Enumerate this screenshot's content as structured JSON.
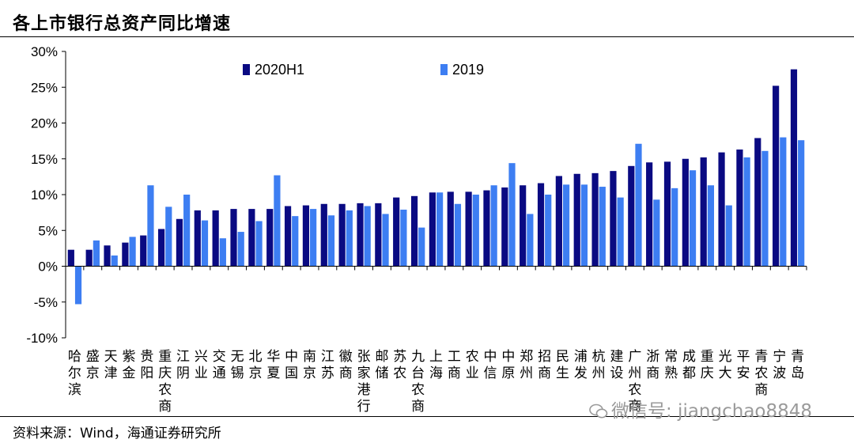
{
  "title": "各上市银行总资产同比增速",
  "source": "资料来源：Wind，海通证券研究所",
  "watermark": "微信号: jiangchao8848",
  "colors": {
    "series_2020H1": "#0a0a82",
    "series_2019": "#3d7ef2"
  },
  "chart_data": {
    "type": "bar",
    "title": "各上市银行总资产同比增速",
    "xlabel": "",
    "ylabel": "",
    "ylim": [
      -10,
      30
    ],
    "yticks": [
      "-10%",
      "-5%",
      "0%",
      "5%",
      "10%",
      "15%",
      "20%",
      "25%",
      "30%"
    ],
    "ytick_values": [
      -10,
      -5,
      0,
      5,
      10,
      15,
      20,
      25,
      30
    ],
    "grid": false,
    "legend": "top-left",
    "categories": [
      "哈尔滨",
      "盛京",
      "天津",
      "紫金",
      "贵阳",
      "重庆农商",
      "江阴",
      "兴业",
      "交通",
      "无锡",
      "北京",
      "华夏",
      "中国",
      "南京",
      "江苏",
      "徽商",
      "张家港行",
      "邮储",
      "苏农",
      "九台农商",
      "上海",
      "工商",
      "农业",
      "中信",
      "中原",
      "郑州",
      "招商",
      "民生",
      "浦发",
      "杭州",
      "建设",
      "广州农商",
      "浙商",
      "常熟",
      "成都",
      "重庆",
      "光大",
      "平安",
      "青农商",
      "宁波",
      "青岛"
    ],
    "series": [
      {
        "name": "2020H1",
        "values": [
          2.3,
          2.3,
          2.9,
          3.3,
          4.3,
          5.2,
          6.6,
          7.8,
          7.8,
          8.0,
          8.0,
          8.0,
          8.4,
          8.5,
          8.7,
          8.7,
          8.8,
          8.8,
          9.6,
          9.8,
          10.3,
          10.4,
          10.4,
          10.6,
          11.0,
          11.3,
          11.6,
          12.6,
          12.9,
          13.0,
          13.3,
          14.0,
          14.5,
          14.6,
          15.0,
          15.2,
          15.9,
          16.3,
          17.9,
          25.2,
          27.5
        ]
      },
      {
        "name": "2019",
        "values": [
          -5.3,
          3.6,
          1.5,
          4.1,
          11.3,
          8.3,
          10.0,
          6.4,
          3.9,
          4.8,
          6.3,
          12.7,
          7.0,
          8.0,
          7.1,
          7.8,
          8.4,
          7.3,
          7.9,
          5.4,
          10.3,
          8.7,
          10.0,
          11.3,
          14.4,
          7.3,
          10.0,
          11.4,
          11.4,
          11.1,
          9.6,
          17.1,
          9.3,
          10.9,
          13.4,
          11.3,
          8.5,
          15.2,
          16.1,
          18.0,
          17.6
        ]
      }
    ]
  }
}
